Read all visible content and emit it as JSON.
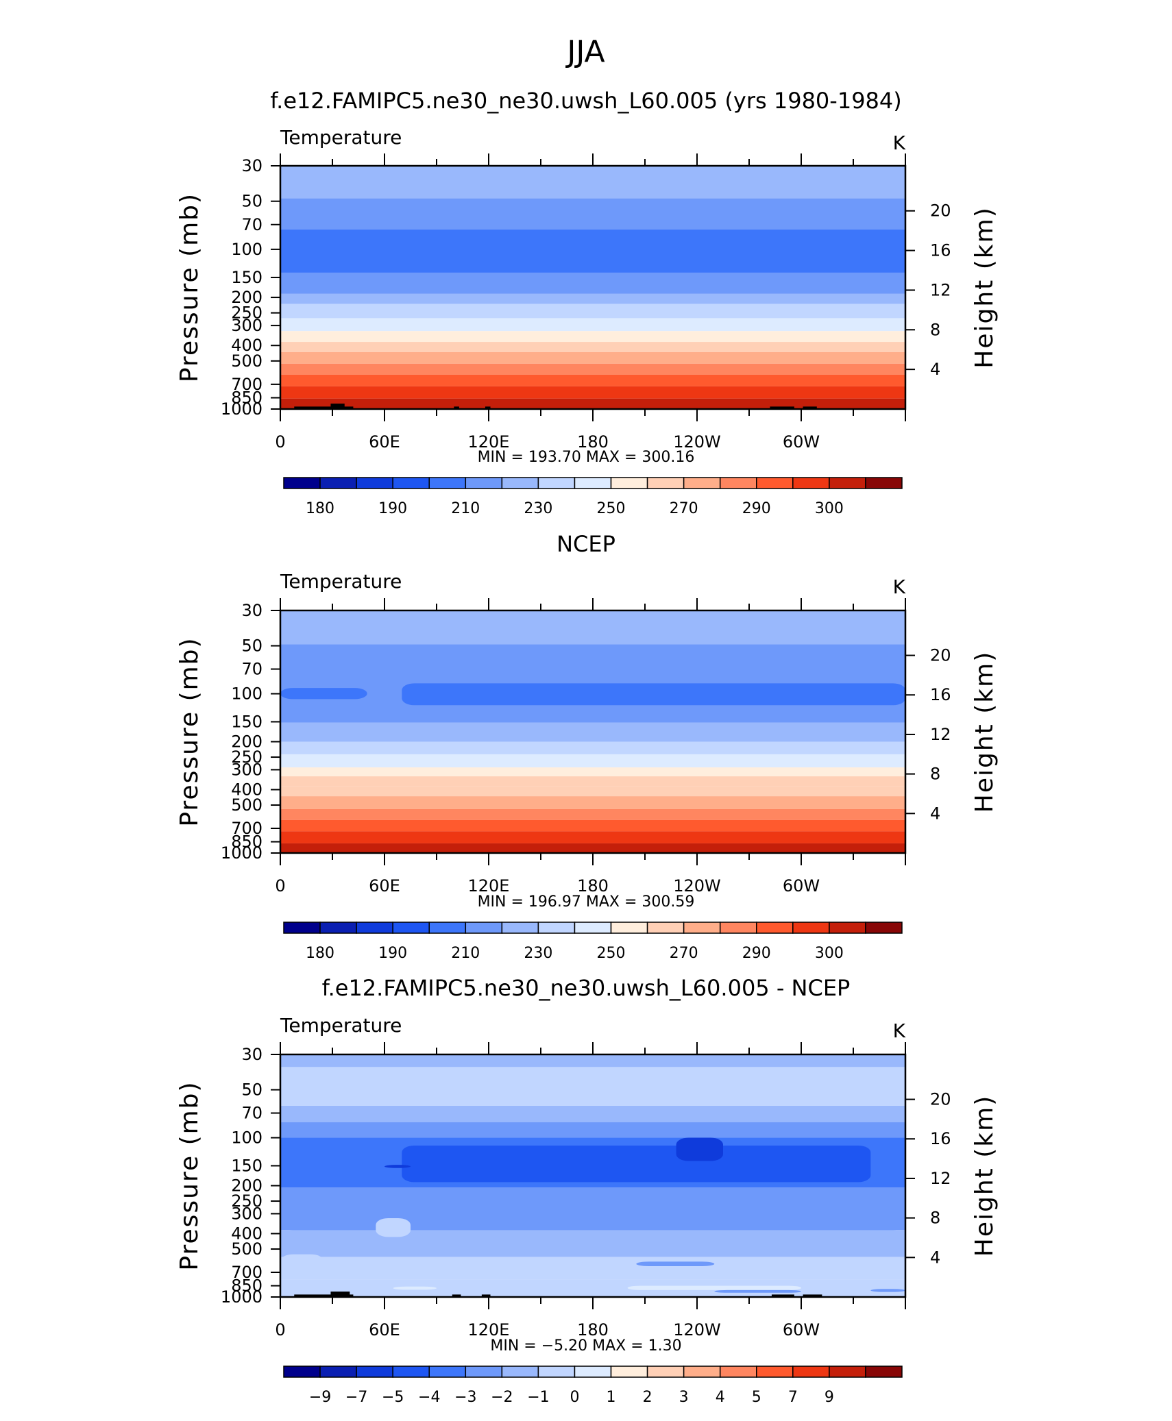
{
  "page": {
    "title": "JJA"
  },
  "colors": {
    "temperature_bands": [
      "#00008C",
      "#0A1FB2",
      "#0F3BDB",
      "#1E56F2",
      "#3D76FA",
      "#6E99FA",
      "#99B8FC",
      "#C1D6FF",
      "#DDEBFF",
      "#FFEEDD",
      "#FFD0B6",
      "#FFAE8A",
      "#FF8660",
      "#FF5A2E",
      "#EE3713",
      "#C41F0A",
      "#880606"
    ],
    "diff_bands": [
      "#00008C",
      "#0A1FB2",
      "#0F3BDB",
      "#1E56F2",
      "#3D76FA",
      "#6E99FA",
      "#99B8FC",
      "#C1D6FF",
      "#DDEBFF",
      "#FFEEDD",
      "#FFD0B6",
      "#FFAE8A",
      "#FF8660",
      "#FF5A2E",
      "#EE3713",
      "#C41F0A",
      "#880606"
    ]
  },
  "chart_data": [
    {
      "type": "heatmap",
      "panel_title": "f.e12.FAMIPC5.ne30_ne30.uwsh_L60.005 (yrs 1980-1984)",
      "left_label": "Temperature",
      "right_label": "K",
      "ylabel": "Pressure (mb)",
      "ylabel2": "Height (km)",
      "x_ticks": [
        "0",
        "60E",
        "120E",
        "180",
        "120W",
        "60W"
      ],
      "x_tick_positions_deg": [
        0,
        60,
        120,
        180,
        240,
        300
      ],
      "xlim": [
        0,
        360
      ],
      "y_ticks": [
        "30",
        "50",
        "70",
        "100",
        "150",
        "200",
        "250",
        "300",
        "400",
        "500",
        "700",
        "850",
        "1000"
      ],
      "y_tick_values_mb": [
        30,
        50,
        70,
        100,
        150,
        200,
        250,
        300,
        400,
        500,
        700,
        850,
        1000
      ],
      "ylim_mb": [
        1000,
        30
      ],
      "y_scale": "log",
      "y2_ticks": [
        "20",
        "16",
        "12",
        "8",
        "4"
      ],
      "y2_tick_values_km": [
        20,
        16,
        12,
        8,
        4
      ],
      "min_max": "MIN =  193.70   MAX =  300.16",
      "min": 193.7,
      "max": 300.16,
      "colorbar_labels": [
        "180",
        "190",
        "210",
        "230",
        "250",
        "270",
        "290",
        "300"
      ],
      "colorbar_levels": [
        175,
        180,
        185,
        190,
        200,
        210,
        220,
        230,
        240,
        250,
        260,
        270,
        280,
        290,
        295,
        300
      ],
      "layers": [
        {
          "p_top": 30,
          "p_bot": 48,
          "value": 215
        },
        {
          "p_top": 48,
          "p_bot": 75,
          "value": 205
        },
        {
          "p_top": 75,
          "p_bot": 140,
          "value": 198
        },
        {
          "p_top": 140,
          "p_bot": 190,
          "value": 205
        },
        {
          "p_top": 190,
          "p_bot": 220,
          "value": 215
        },
        {
          "p_top": 220,
          "p_bot": 270,
          "value": 225
        },
        {
          "p_top": 270,
          "p_bot": 325,
          "value": 235
        },
        {
          "p_top": 325,
          "p_bot": 380,
          "value": 245
        },
        {
          "p_top": 380,
          "p_bot": 440,
          "value": 255
        },
        {
          "p_top": 440,
          "p_bot": 520,
          "value": 265
        },
        {
          "p_top": 520,
          "p_bot": 610,
          "value": 275
        },
        {
          "p_top": 610,
          "p_bot": 720,
          "value": 285
        },
        {
          "p_top": 720,
          "p_bot": 860,
          "value": 292
        },
        {
          "p_top": 860,
          "p_bot": 1000,
          "value": 297
        }
      ],
      "topography": [
        {
          "lon_start": 8,
          "lon_end": 42,
          "p_top": 965
        },
        {
          "lon_start": 29,
          "lon_end": 37,
          "p_top": 925
        },
        {
          "lon_start": 100,
          "lon_end": 103,
          "p_top": 965
        },
        {
          "lon_start": 118,
          "lon_end": 121,
          "p_top": 965
        },
        {
          "lon_start": 282,
          "lon_end": 296,
          "p_top": 965
        },
        {
          "lon_start": 301,
          "lon_end": 309,
          "p_top": 965
        }
      ]
    },
    {
      "type": "heatmap",
      "panel_title": "NCEP",
      "left_label": "Temperature",
      "right_label": "K",
      "ylabel": "Pressure (mb)",
      "ylabel2": "Height (km)",
      "x_ticks": [
        "0",
        "60E",
        "120E",
        "180",
        "120W",
        "60W"
      ],
      "x_tick_positions_deg": [
        0,
        60,
        120,
        180,
        240,
        300
      ],
      "xlim": [
        0,
        360
      ],
      "y_ticks": [
        "30",
        "50",
        "70",
        "100",
        "150",
        "200",
        "250",
        "300",
        "400",
        "500",
        "700",
        "850",
        "1000"
      ],
      "y_tick_values_mb": [
        30,
        50,
        70,
        100,
        150,
        200,
        250,
        300,
        400,
        500,
        700,
        850,
        1000
      ],
      "ylim_mb": [
        1000,
        30
      ],
      "y_scale": "log",
      "y2_ticks": [
        "20",
        "16",
        "12",
        "8",
        "4"
      ],
      "y2_tick_values_km": [
        20,
        16,
        12,
        8,
        4
      ],
      "min_max": "MIN =  196.97   MAX =  300.59",
      "min": 196.97,
      "max": 300.59,
      "colorbar_labels": [
        "180",
        "190",
        "210",
        "230",
        "250",
        "270",
        "290",
        "300"
      ],
      "colorbar_levels": [
        175,
        180,
        185,
        190,
        200,
        210,
        220,
        230,
        240,
        250,
        260,
        270,
        280,
        290,
        295,
        300
      ],
      "layers": [
        {
          "p_top": 30,
          "p_bot": 49,
          "value": 215
        },
        {
          "p_top": 49,
          "p_bot": 152,
          "value": 205
        },
        {
          "p_top": 152,
          "p_bot": 200,
          "value": 210
        },
        {
          "p_top": 200,
          "p_bot": 240,
          "value": 220
        },
        {
          "p_top": 240,
          "p_bot": 290,
          "value": 230
        },
        {
          "p_top": 290,
          "p_bot": 330,
          "value": 245
        },
        {
          "p_top": 330,
          "p_bot": 380,
          "value": 252
        },
        {
          "p_top": 380,
          "p_bot": 440,
          "value": 258
        },
        {
          "p_top": 440,
          "p_bot": 530,
          "value": 265
        },
        {
          "p_top": 530,
          "p_bot": 620,
          "value": 275
        },
        {
          "p_top": 620,
          "p_bot": 730,
          "value": 285
        },
        {
          "p_top": 730,
          "p_bot": 870,
          "value": 292
        },
        {
          "p_top": 870,
          "p_bot": 1000,
          "value": 297
        }
      ],
      "patches": [
        {
          "lon_start": 0,
          "lon_end": 50,
          "p_top": 92,
          "p_bot": 108,
          "value": 198
        },
        {
          "lon_start": 70,
          "lon_end": 360,
          "p_top": 86,
          "p_bot": 118,
          "value": 198
        }
      ],
      "topography": []
    },
    {
      "type": "heatmap",
      "panel_title": "f.e12.FAMIPC5.ne30_ne30.uwsh_L60.005 - NCEP",
      "left_label": "Temperature",
      "right_label": "K",
      "ylabel": "Pressure (mb)",
      "ylabel2": "Height (km)",
      "x_ticks": [
        "0",
        "60E",
        "120E",
        "180",
        "120W",
        "60W"
      ],
      "x_tick_positions_deg": [
        0,
        60,
        120,
        180,
        240,
        300
      ],
      "xlim": [
        0,
        360
      ],
      "y_ticks": [
        "30",
        "50",
        "70",
        "100",
        "150",
        "200",
        "250",
        "300",
        "400",
        "500",
        "700",
        "850",
        "1000"
      ],
      "y_tick_values_mb": [
        30,
        50,
        70,
        100,
        150,
        200,
        250,
        300,
        400,
        500,
        700,
        850,
        1000
      ],
      "ylim_mb": [
        1000,
        30
      ],
      "y_scale": "log",
      "y2_ticks": [
        "20",
        "16",
        "12",
        "8",
        "4"
      ],
      "y2_tick_values_km": [
        20,
        16,
        12,
        8,
        4
      ],
      "min_max": "MIN =   −5.20   MAX =     1.30",
      "min": -5.2,
      "max": 1.3,
      "colorbar_labels": [
        "−9",
        "−7",
        "−5",
        "−4",
        "−3",
        "−2",
        "−1",
        "0",
        "1",
        "2",
        "3",
        "4",
        "5",
        "7",
        "9"
      ],
      "colorbar_levels": [
        -9,
        -7,
        -5,
        -4,
        -3,
        -2,
        -1,
        0,
        1,
        2,
        3,
        4,
        5,
        7,
        9
      ],
      "layers": [
        {
          "p_top": 30,
          "p_bot": 36,
          "value": -1.5
        },
        {
          "p_top": 36,
          "p_bot": 63,
          "value": -0.5
        },
        {
          "p_top": 63,
          "p_bot": 80,
          "value": -1.5
        },
        {
          "p_top": 80,
          "p_bot": 100,
          "value": -2.5
        },
        {
          "p_top": 100,
          "p_bot": 205,
          "value": -3.5
        },
        {
          "p_top": 205,
          "p_bot": 260,
          "value": -2.5
        },
        {
          "p_top": 260,
          "p_bot": 380,
          "value": -2.5
        },
        {
          "p_top": 380,
          "p_bot": 560,
          "value": -1.5
        },
        {
          "p_top": 560,
          "p_bot": 780,
          "value": -0.5
        },
        {
          "p_top": 780,
          "p_bot": 1000,
          "value": -0.5
        }
      ],
      "patches": [
        {
          "lon_start": 0,
          "lon_end": 360,
          "p_top": 260,
          "p_bot": 380,
          "value": -2.5
        },
        {
          "lon_start": 0,
          "lon_end": 25,
          "p_top": 540,
          "p_bot": 700,
          "value": -0.5
        },
        {
          "lon_start": 55,
          "lon_end": 75,
          "p_top": 320,
          "p_bot": 420,
          "value": -0.5
        },
        {
          "lon_start": 205,
          "lon_end": 250,
          "p_top": 600,
          "p_bot": 640,
          "value": -2.5
        },
        {
          "lon_start": 70,
          "lon_end": 340,
          "p_top": 112,
          "p_bot": 190,
          "value": -4.5
        },
        {
          "lon_start": 228,
          "lon_end": 255,
          "p_top": 100,
          "p_bot": 140,
          "value": -6.0
        },
        {
          "lon_start": 60,
          "lon_end": 75,
          "p_top": 148,
          "p_bot": 155,
          "value": -6.0
        },
        {
          "lon_start": 65,
          "lon_end": 90,
          "p_top": 860,
          "p_bot": 900,
          "value": 0.5
        },
        {
          "lon_start": 200,
          "lon_end": 300,
          "p_top": 850,
          "p_bot": 905,
          "value": 0.5
        },
        {
          "lon_start": 250,
          "lon_end": 300,
          "p_top": 905,
          "p_bot": 940,
          "value": -2.5
        },
        {
          "lon_start": 340,
          "lon_end": 360,
          "p_top": 890,
          "p_bot": 930,
          "value": -2.5
        }
      ],
      "topography": [
        {
          "lon_start": 8,
          "lon_end": 42,
          "p_top": 965
        },
        {
          "lon_start": 29,
          "lon_end": 40,
          "p_top": 925
        },
        {
          "lon_start": 99,
          "lon_end": 104,
          "p_top": 965
        },
        {
          "lon_start": 116,
          "lon_end": 121,
          "p_top": 965
        },
        {
          "lon_start": 283,
          "lon_end": 296,
          "p_top": 965
        },
        {
          "lon_start": 301,
          "lon_end": 312,
          "p_top": 965
        }
      ]
    }
  ]
}
